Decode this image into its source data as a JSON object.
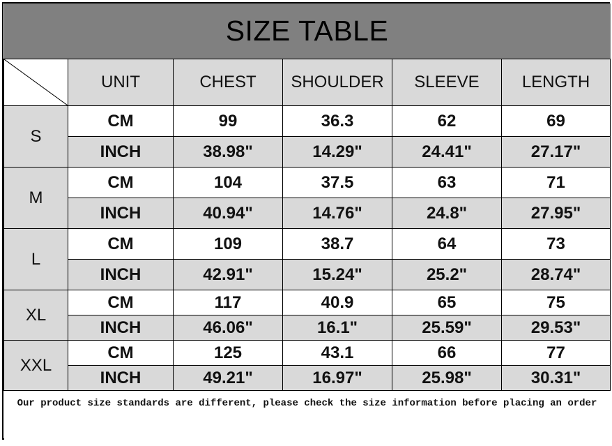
{
  "title": "SIZE TABLE",
  "headers": [
    "UNIT",
    "CHEST",
    "SHOULDER",
    "SLEEVE",
    "LENGTH"
  ],
  "rows": [
    {
      "size": "S",
      "cm": {
        "unit": "CM",
        "values": [
          "99",
          "36.3",
          "62",
          "69"
        ]
      },
      "inch": {
        "unit": "INCH",
        "values": [
          "38.98\"",
          "14.29\"",
          "24.41\"",
          "27.17\""
        ]
      }
    },
    {
      "size": "M",
      "cm": {
        "unit": "CM",
        "values": [
          "104",
          "37.5",
          "63",
          "71"
        ]
      },
      "inch": {
        "unit": "INCH",
        "values": [
          "40.94\"",
          "14.76\"",
          "24.8\"",
          "27.95\""
        ]
      }
    },
    {
      "size": "L",
      "cm": {
        "unit": "CM",
        "values": [
          "109",
          "38.7",
          "64",
          "73"
        ]
      },
      "inch": {
        "unit": "INCH",
        "values": [
          "42.91\"",
          "15.24\"",
          "25.2\"",
          "28.74\""
        ]
      }
    },
    {
      "size": "XL",
      "cm": {
        "unit": "CM",
        "values": [
          "117",
          "40.9",
          "65",
          "75"
        ]
      },
      "inch": {
        "unit": "INCH",
        "values": [
          "46.06\"",
          "16.1\"",
          "25.59\"",
          "29.53\""
        ]
      }
    },
    {
      "size": "XXL",
      "cm": {
        "unit": "CM",
        "values": [
          "125",
          "43.1",
          "66",
          "77"
        ]
      },
      "inch": {
        "unit": "INCH",
        "values": [
          "49.21\"",
          "16.97\"",
          "25.98\"",
          "30.31\""
        ]
      }
    }
  ],
  "note": "Our product size standards are different, please check the size information before placing an order",
  "colors": {
    "title_bg": "#808080",
    "header_bg": "#d9d9d9",
    "border": "#000000"
  }
}
